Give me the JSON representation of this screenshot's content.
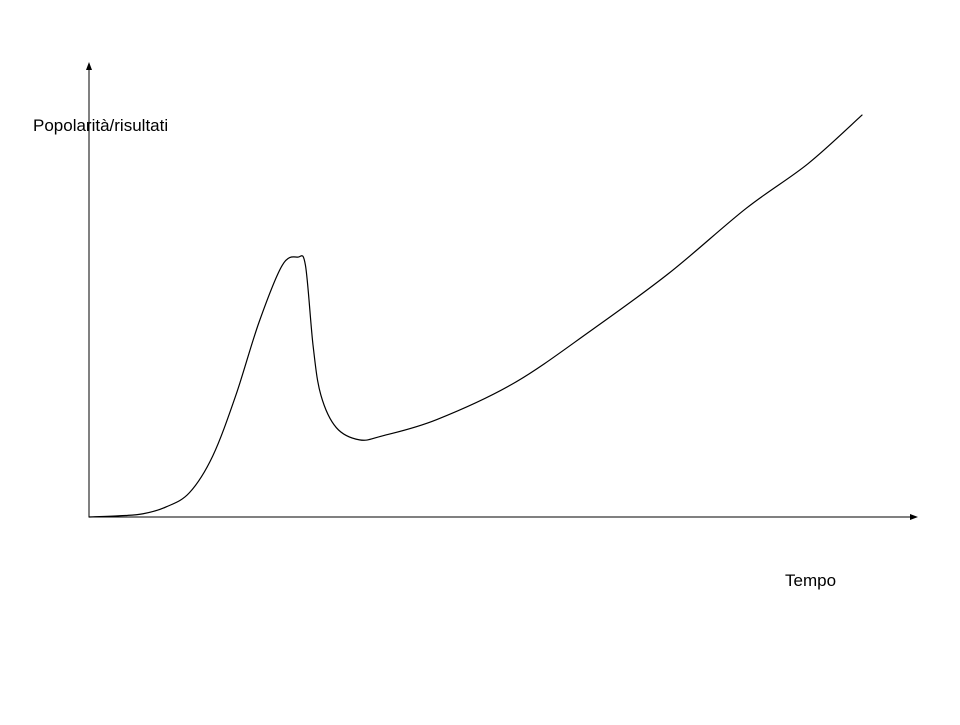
{
  "chart_data": {
    "type": "line",
    "title": "",
    "xlabel": "Tempo",
    "ylabel": "Popolarità/risultati",
    "grid": false,
    "legend": "none",
    "xlim": [
      0,
      100
    ],
    "ylim": [
      0,
      100
    ],
    "line_color": "#000000",
    "series": [
      {
        "name": "",
        "points": [
          [
            0,
            0.0
          ],
          [
            4,
            0.3
          ],
          [
            7,
            0.8
          ],
          [
            10,
            2.5
          ],
          [
            13,
            6.0
          ],
          [
            16,
            15.0
          ],
          [
            19,
            30.0
          ],
          [
            22,
            48.0
          ],
          [
            25,
            62.0
          ],
          [
            27,
            64.0
          ],
          [
            28,
            62.0
          ],
          [
            29,
            42.0
          ],
          [
            30,
            30.0
          ],
          [
            32,
            22.0
          ],
          [
            35,
            19.0
          ],
          [
            38,
            20.0
          ],
          [
            45,
            24.0
          ],
          [
            55,
            33.0
          ],
          [
            65,
            46.0
          ],
          [
            75,
            60.0
          ],
          [
            85,
            76.0
          ],
          [
            93,
            87.0
          ],
          [
            100,
            99.0
          ]
        ]
      }
    ]
  }
}
